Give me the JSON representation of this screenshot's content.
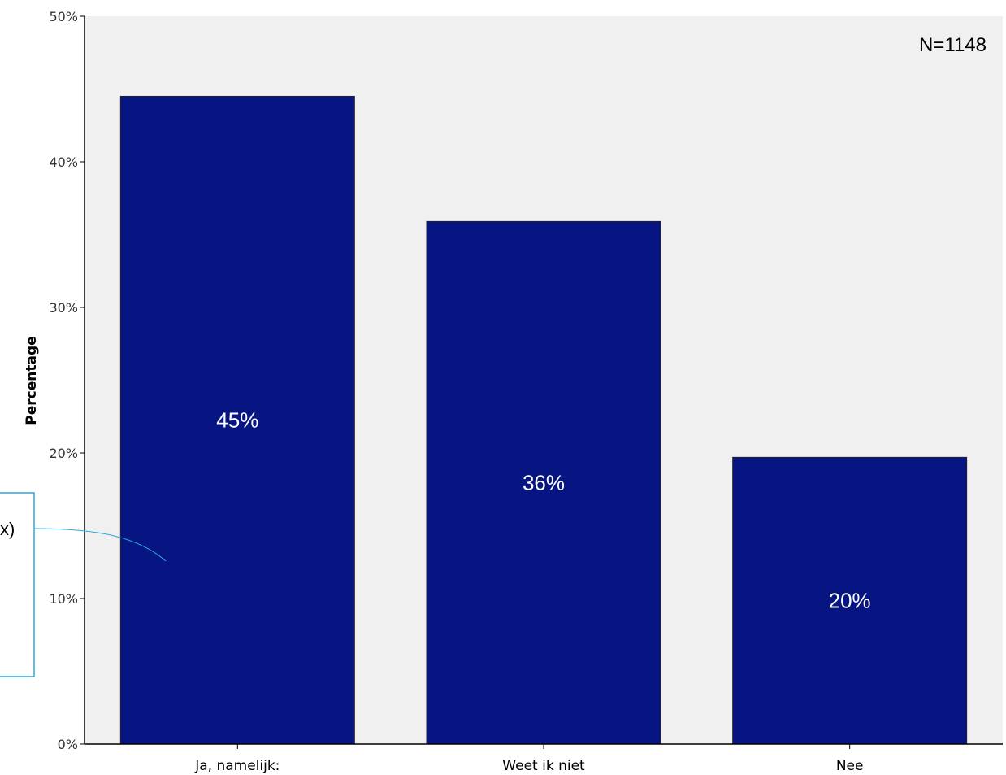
{
  "chart_data": {
    "type": "bar",
    "categories": [
      "Ja, namelijk:",
      "Weet ik niet",
      "Nee"
    ],
    "values": [
      44.5,
      35.9,
      19.7
    ],
    "data_labels": [
      "45%",
      "36%",
      "20%"
    ],
    "ylabel": "Percentage",
    "xlabel": "",
    "ylim": [
      0,
      50
    ],
    "yticks": [
      0,
      10,
      20,
      30,
      40,
      50
    ],
    "ytick_labels": [
      "0%",
      "10%",
      "20%",
      "30%",
      "40%",
      "50%"
    ],
    "annotation": "N=1148",
    "grid": false,
    "legend": "none",
    "colors": {
      "bar": "#071583",
      "plot_background": "#f0f0f0",
      "callout_border": "#29a8e0"
    }
  },
  "callout": {
    "text": "x)"
  }
}
